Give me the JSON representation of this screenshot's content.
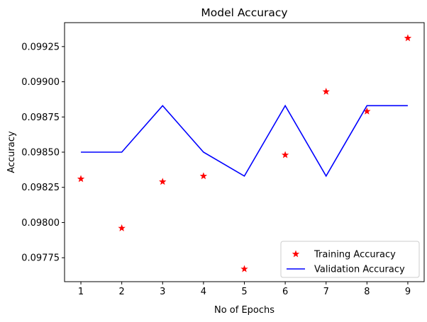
{
  "chart_data": {
    "type": "line",
    "title": "Model Accuracy",
    "xlabel": "No of Epochs",
    "ylabel": "Accuracy",
    "xlim": [
      0.6,
      9.4
    ],
    "ylim": [
      0.09758,
      0.09942
    ],
    "x": [
      1,
      2,
      3,
      4,
      5,
      6,
      7,
      8,
      9
    ],
    "xticks": [
      "1",
      "2",
      "3",
      "4",
      "5",
      "6",
      "7",
      "8",
      "9"
    ],
    "yticks": [
      {
        "value": 0.09775,
        "label": "0.09775"
      },
      {
        "value": 0.098,
        "label": "0.09800"
      },
      {
        "value": 0.09825,
        "label": "0.09825"
      },
      {
        "value": 0.0985,
        "label": "0.09850"
      },
      {
        "value": 0.09875,
        "label": "0.09875"
      },
      {
        "value": 0.099,
        "label": "0.09900"
      },
      {
        "value": 0.09925,
        "label": "0.09925"
      }
    ],
    "series": [
      {
        "name": "Training Accuracy",
        "style": "star-markers",
        "color": "#ff0000",
        "values": [
          0.09831,
          0.09796,
          0.09829,
          0.09833,
          0.09767,
          0.09848,
          0.09893,
          0.09879,
          0.09931
        ]
      },
      {
        "name": "Validation Accuracy",
        "style": "line",
        "color": "#0000ff",
        "values": [
          0.0985,
          0.0985,
          0.09883,
          0.0985,
          0.09833,
          0.09883,
          0.09833,
          0.09883,
          0.09883
        ]
      }
    ],
    "legend_position": "lower-right",
    "grid": false
  }
}
